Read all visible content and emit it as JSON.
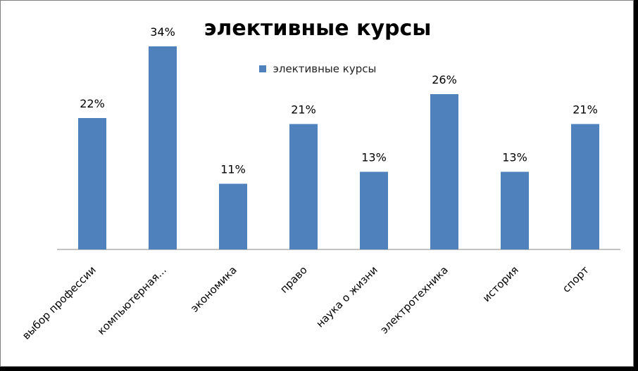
{
  "chart_data": {
    "type": "bar",
    "title": "элективные курсы",
    "legend": {
      "position": "top",
      "entries": [
        "элективные курсы"
      ]
    },
    "categories": [
      "выбор профессии",
      "компьютерная...",
      "экономика",
      "право",
      "наука о жизни",
      "электротехника",
      "история",
      "спорт"
    ],
    "series": [
      {
        "name": "элективные курсы",
        "values": [
          22,
          34,
          11,
          21,
          13,
          26,
          13,
          21
        ],
        "labels": [
          "22%",
          "34%",
          "11%",
          "21%",
          "13%",
          "26%",
          "13%",
          "21%"
        ]
      }
    ],
    "unit": "%",
    "ylim": [
      0,
      40
    ],
    "grid": false,
    "bar_color": "#4f81bd"
  }
}
